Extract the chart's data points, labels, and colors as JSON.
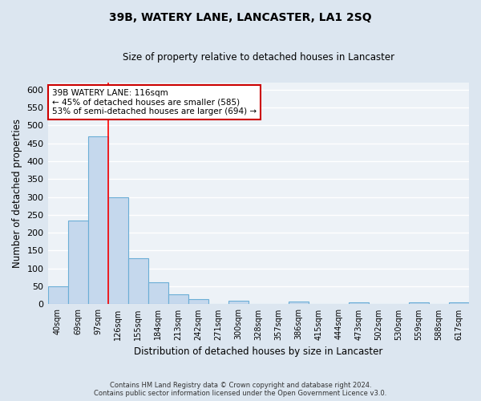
{
  "title": "39B, WATERY LANE, LANCASTER, LA1 2SQ",
  "subtitle": "Size of property relative to detached houses in Lancaster",
  "xlabel": "Distribution of detached houses by size in Lancaster",
  "ylabel": "Number of detached properties",
  "categories": [
    "40sqm",
    "69sqm",
    "97sqm",
    "126sqm",
    "155sqm",
    "184sqm",
    "213sqm",
    "242sqm",
    "271sqm",
    "300sqm",
    "328sqm",
    "357sqm",
    "386sqm",
    "415sqm",
    "444sqm",
    "473sqm",
    "502sqm",
    "530sqm",
    "559sqm",
    "588sqm",
    "617sqm"
  ],
  "bar_heights": [
    50,
    235,
    470,
    300,
    128,
    62,
    28,
    15,
    0,
    10,
    0,
    0,
    8,
    0,
    0,
    5,
    0,
    0,
    5,
    0,
    5
  ],
  "bar_color": "#c5d8ed",
  "bar_edge_color": "#6baed6",
  "ylim": [
    0,
    620
  ],
  "yticks": [
    0,
    50,
    100,
    150,
    200,
    250,
    300,
    350,
    400,
    450,
    500,
    550,
    600
  ],
  "red_line_index": 2.5,
  "annotation_title": "39B WATERY LANE: 116sqm",
  "annotation_line1": "← 45% of detached houses are smaller (585)",
  "annotation_line2": "53% of semi-detached houses are larger (694) →",
  "annotation_box_color": "#ffffff",
  "annotation_box_edge": "#cc0000",
  "footer_line1": "Contains HM Land Registry data © Crown copyright and database right 2024.",
  "footer_line2": "Contains public sector information licensed under the Open Government Licence v3.0.",
  "bg_color": "#dce6f0",
  "plot_bg_color": "#edf2f7"
}
